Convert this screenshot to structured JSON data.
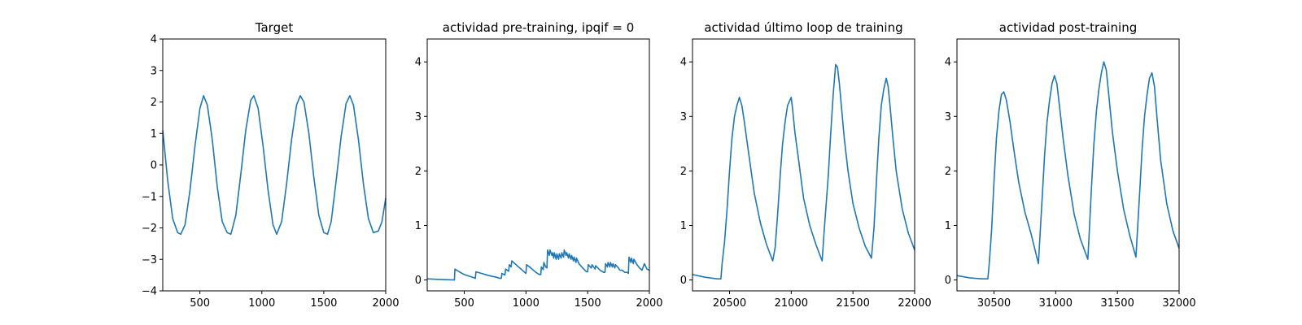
{
  "figure": {
    "background": "#ffffff",
    "line_color": "#1f77b4"
  },
  "chart_data": [
    {
      "type": "line",
      "title": "Target",
      "xlim": [
        200,
        2000
      ],
      "ylim": [
        -4,
        4
      ],
      "xticks": [
        500,
        1000,
        1500,
        2000
      ],
      "yticks": [
        -4,
        -3,
        -2,
        -1,
        0,
        1,
        2,
        3,
        4
      ],
      "xtick_labels": [
        "500",
        "1000",
        "1500",
        "2000"
      ],
      "ytick_labels": [
        "−4",
        "−3",
        "−2",
        "−1",
        "0",
        "1",
        "2",
        "3",
        "4"
      ],
      "series": [
        {
          "x": [
            200,
            240,
            280,
            320,
            345,
            380,
            420,
            460,
            500,
            530,
            560,
            600,
            640,
            680,
            720,
            750,
            790,
            830,
            870,
            910,
            935,
            970,
            1010,
            1050,
            1090,
            1120,
            1160,
            1200,
            1240,
            1280,
            1310,
            1340,
            1380,
            1420,
            1460,
            1500,
            1530,
            1560,
            1600,
            1640,
            1680,
            1710,
            1740,
            1780,
            1820,
            1860,
            1900,
            1940,
            1970,
            2000
          ],
          "y": [
            1.1,
            -0.5,
            -1.7,
            -2.15,
            -2.2,
            -1.9,
            -0.8,
            0.6,
            1.8,
            2.2,
            1.9,
            0.8,
            -0.7,
            -1.8,
            -2.15,
            -2.2,
            -1.6,
            -0.3,
            1.1,
            2.05,
            2.2,
            1.8,
            0.6,
            -0.8,
            -1.9,
            -2.2,
            -1.8,
            -0.6,
            0.8,
            1.9,
            2.2,
            2.0,
            1.0,
            -0.4,
            -1.6,
            -2.15,
            -2.2,
            -1.8,
            -0.5,
            0.9,
            1.95,
            2.2,
            1.9,
            0.8,
            -0.6,
            -1.7,
            -2.15,
            -2.1,
            -1.8,
            -1.05
          ]
        }
      ]
    },
    {
      "type": "line",
      "title": "actividad pre-training, ipqif = 0",
      "xlim": [
        200,
        2000
      ],
      "ylim": [
        -0.2,
        4.42
      ],
      "xticks": [
        500,
        1000,
        1500,
        2000
      ],
      "yticks": [
        0,
        1,
        2,
        3,
        4
      ],
      "xtick_labels": [
        "500",
        "1000",
        "1500",
        "2000"
      ],
      "ytick_labels": [
        "0",
        "1",
        "2",
        "3",
        "4"
      ],
      "series": [
        {
          "x": [
            200,
            300,
            420,
            425,
            460,
            500,
            540,
            580,
            590,
            595,
            640,
            700,
            760,
            790,
            800,
            805,
            830,
            835,
            860,
            865,
            880,
            885,
            920,
            960,
            990,
            1000,
            1005,
            1040,
            1080,
            1110,
            1120,
            1125,
            1140,
            1145,
            1160,
            1170,
            1175,
            1190,
            1195,
            1210,
            1215,
            1225,
            1230,
            1245,
            1250,
            1265,
            1270,
            1285,
            1290,
            1305,
            1310,
            1325,
            1330,
            1345,
            1350,
            1365,
            1370,
            1385,
            1390,
            1405,
            1410,
            1430,
            1460,
            1490,
            1500,
            1505,
            1530,
            1535,
            1560,
            1565,
            1600,
            1630,
            1640,
            1645,
            1660,
            1665,
            1680,
            1685,
            1700,
            1705,
            1720,
            1725,
            1750,
            1760,
            1780,
            1800,
            1820,
            1830,
            1835,
            1850,
            1855,
            1870,
            1875,
            1900,
            1920,
            1940,
            1960,
            1980,
            2000
          ],
          "y": [
            0.02,
            0.01,
            0.0,
            0.2,
            0.15,
            0.1,
            0.07,
            0.04,
            0.03,
            0.15,
            0.12,
            0.08,
            0.05,
            0.03,
            0.03,
            0.12,
            0.09,
            0.2,
            0.16,
            0.28,
            0.24,
            0.35,
            0.28,
            0.2,
            0.14,
            0.12,
            0.28,
            0.22,
            0.14,
            0.1,
            0.1,
            0.24,
            0.19,
            0.32,
            0.24,
            0.22,
            0.55,
            0.45,
            0.55,
            0.45,
            0.5,
            0.4,
            0.5,
            0.38,
            0.48,
            0.38,
            0.48,
            0.4,
            0.5,
            0.42,
            0.55,
            0.45,
            0.5,
            0.4,
            0.48,
            0.38,
            0.45,
            0.35,
            0.42,
            0.32,
            0.4,
            0.3,
            0.22,
            0.15,
            0.15,
            0.28,
            0.22,
            0.28,
            0.2,
            0.26,
            0.18,
            0.14,
            0.14,
            0.3,
            0.24,
            0.32,
            0.24,
            0.32,
            0.24,
            0.3,
            0.22,
            0.28,
            0.22,
            0.18,
            0.18,
            0.14,
            0.14,
            0.12,
            0.42,
            0.32,
            0.4,
            0.3,
            0.38,
            0.28,
            0.22,
            0.18,
            0.3,
            0.2,
            0.18
          ]
        }
      ]
    },
    {
      "type": "line",
      "title": "actividad último loop de training",
      "xlim": [
        20200,
        22000
      ],
      "ylim": [
        -0.2,
        4.42
      ],
      "xticks": [
        20500,
        21000,
        21500,
        22000
      ],
      "yticks": [
        0,
        1,
        2,
        3,
        4
      ],
      "xtick_labels": [
        "20500",
        "21000",
        "21500",
        "22000"
      ],
      "ytick_labels": [
        "0",
        "1",
        "2",
        "3",
        "4"
      ],
      "series": [
        {
          "x": [
            20200,
            20300,
            20400,
            20430,
            20440,
            20460,
            20480,
            20500,
            20520,
            20540,
            20560,
            20580,
            20600,
            20620,
            20650,
            20700,
            20750,
            20800,
            20850,
            20870,
            20890,
            20910,
            20930,
            20950,
            20970,
            20990,
            21000,
            21010,
            21030,
            21060,
            21100,
            21150,
            21200,
            21250,
            21270,
            21300,
            21320,
            21340,
            21360,
            21375,
            21390,
            21410,
            21430,
            21460,
            21500,
            21550,
            21600,
            21650,
            21670,
            21690,
            21710,
            21730,
            21750,
            21770,
            21785,
            21800,
            21820,
            21850,
            21900,
            21950,
            22000
          ],
          "y": [
            0.1,
            0.05,
            0.02,
            0.02,
            0.3,
            0.7,
            1.3,
            2.0,
            2.6,
            3.0,
            3.2,
            3.35,
            3.2,
            2.9,
            2.4,
            1.6,
            1.05,
            0.65,
            0.35,
            0.6,
            1.2,
            1.9,
            2.5,
            2.9,
            3.2,
            3.3,
            3.35,
            3.15,
            2.7,
            2.2,
            1.5,
            1.0,
            0.65,
            0.35,
            1.0,
            1.9,
            2.7,
            3.4,
            3.95,
            3.9,
            3.6,
            3.1,
            2.6,
            2.0,
            1.4,
            0.95,
            0.62,
            0.4,
            0.95,
            1.8,
            2.6,
            3.2,
            3.5,
            3.7,
            3.55,
            3.2,
            2.7,
            2.0,
            1.3,
            0.85,
            0.55
          ]
        }
      ]
    },
    {
      "type": "line",
      "title": "actividad post-training",
      "xlim": [
        30200,
        32000
      ],
      "ylim": [
        -0.2,
        4.42
      ],
      "xticks": [
        30500,
        31000,
        31500,
        32000
      ],
      "yticks": [
        0,
        1,
        2,
        3,
        4
      ],
      "xtick_labels": [
        "30500",
        "31000",
        "31500",
        "32000"
      ],
      "ytick_labels": [
        "0",
        "1",
        "2",
        "3",
        "4"
      ],
      "series": [
        {
          "x": [
            30200,
            30300,
            30400,
            30450,
            30460,
            30480,
            30500,
            30520,
            30540,
            30560,
            30580,
            30600,
            30630,
            30660,
            30700,
            30750,
            30800,
            30860,
            30870,
            30890,
            30910,
            30930,
            30950,
            30970,
            30990,
            31010,
            31030,
            31060,
            31100,
            31150,
            31200,
            31260,
            31270,
            31290,
            31310,
            31330,
            31350,
            31370,
            31390,
            31410,
            31430,
            31460,
            31500,
            31550,
            31600,
            31650,
            31660,
            31680,
            31700,
            31720,
            31740,
            31760,
            31780,
            31800,
            31820,
            31850,
            31900,
            31950,
            32000
          ],
          "y": [
            0.08,
            0.04,
            0.02,
            0.02,
            0.25,
            0.9,
            1.8,
            2.6,
            3.1,
            3.4,
            3.45,
            3.3,
            2.9,
            2.4,
            1.8,
            1.25,
            0.85,
            0.3,
            0.7,
            1.5,
            2.3,
            2.9,
            3.3,
            3.6,
            3.75,
            3.6,
            3.2,
            2.6,
            1.9,
            1.2,
            0.75,
            0.38,
            0.8,
            1.7,
            2.5,
            3.1,
            3.5,
            3.8,
            4.0,
            3.85,
            3.4,
            2.7,
            2.0,
            1.3,
            0.82,
            0.42,
            0.8,
            1.6,
            2.4,
            3.0,
            3.4,
            3.7,
            3.8,
            3.55,
            3.0,
            2.2,
            1.4,
            0.9,
            0.58
          ]
        }
      ]
    }
  ]
}
